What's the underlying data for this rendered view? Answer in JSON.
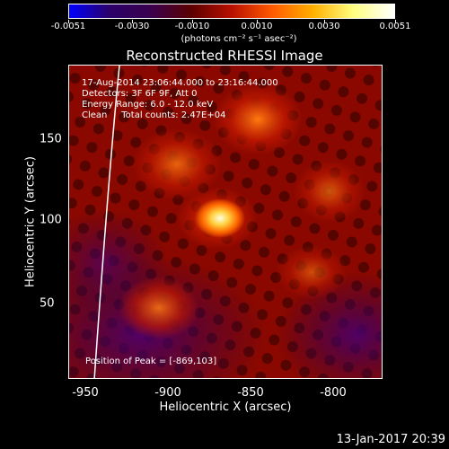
{
  "colorbar": {
    "ticks": [
      "-0.0051",
      "-0.0030",
      "-0.0010",
      "0.0010",
      "0.0030",
      "0.0051"
    ],
    "units": "(photons cm⁻² s⁻¹ asec⁻²)",
    "colors": [
      "#0000ff",
      "#2b0068",
      "#3a004e",
      "#5a0000",
      "#b81000",
      "#ff5a00",
      "#ffb000",
      "#ffff80",
      "#ffffff"
    ]
  },
  "title": "Reconstructed RHESSI Image",
  "info": {
    "line1": "17-Aug-2014 23:06:44.000 to 23:16:44.000",
    "line2": "Detectors: 3F 6F 9F, Att 0",
    "line3": "Energy Range: 6.0 - 12.0 keV",
    "line4": "Clean     Total counts: 2.47E+04",
    "peak": "Position of Peak = [-869,103]"
  },
  "axes": {
    "xlabel": "Heliocentric X (arcsec)",
    "ylabel": "Heliocentric Y (arcsec)",
    "xticks": [
      "-950",
      "-900",
      "-850",
      "-800"
    ],
    "yticks": [
      "150",
      "100",
      "50"
    ]
  },
  "footer": {
    "date": "13-Jan-2017 20:39"
  }
}
